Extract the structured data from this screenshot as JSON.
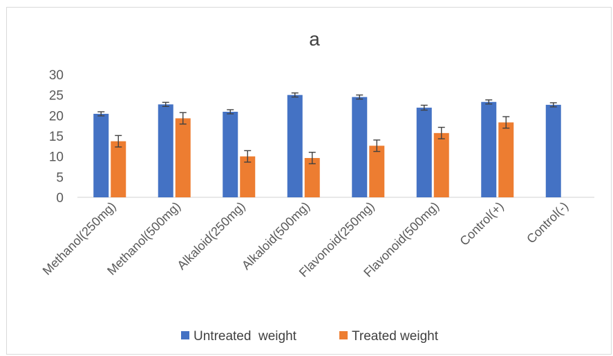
{
  "chart_data": {
    "type": "bar",
    "title": "a",
    "categories": [
      "Methanol(250mg)",
      "Methanol(500mg)",
      "Alkaloid(250mg)",
      "Alkaloid(500mg)",
      "Flavonoid(250mg)",
      "Flavonoid(500mg)",
      "Control(+)",
      "Control(-)"
    ],
    "series": [
      {
        "name": "Untreated  weight",
        "color": "#4472C4",
        "values": [
          20.4,
          22.7,
          20.9,
          25.0,
          24.5,
          21.9,
          23.3,
          22.6
        ],
        "errors": [
          0.5,
          0.5,
          0.5,
          0.5,
          0.5,
          0.6,
          0.5,
          0.5
        ]
      },
      {
        "name": "Treated weight",
        "color": "#ED7D31",
        "values": [
          13.7,
          19.3,
          10.0,
          9.6,
          12.6,
          15.7,
          18.3,
          null
        ],
        "errors": [
          1.4,
          1.4,
          1.4,
          1.4,
          1.4,
          1.4,
          1.4,
          null
        ]
      }
    ],
    "yticks": [
      0,
      5,
      10,
      15,
      20,
      25,
      30
    ],
    "ylim": [
      0,
      30
    ],
    "xlabel": "",
    "ylabel": "",
    "grid": false,
    "legend_position": "bottom"
  }
}
